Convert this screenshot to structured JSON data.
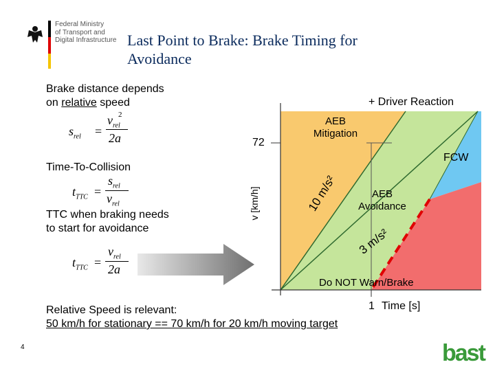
{
  "header": {
    "ministry_lines": [
      "Federal Ministry",
      "of Transport and",
      "Digital Infrastructure"
    ],
    "title_line1": "Last Point to Brake: Brake Timing for",
    "title_line2": "Avoidance"
  },
  "left": {
    "brake_distance_line1": "Brake distance depends",
    "brake_distance_line2_pre": "on ",
    "brake_distance_line2_underlined": "relative",
    "brake_distance_line2_post": " speed",
    "ttc_heading": "Time-To-Collision",
    "ttc_braking_line1": "TTC when braking needs",
    "ttc_braking_line2": "to start for avoidance"
  },
  "formulas": {
    "f1_lhs": "s",
    "f1_lhs_sub": "rel",
    "f1_num": "v",
    "f1_num_sub": "rel",
    "f1_num_sup": "2",
    "f1_den": "2a",
    "f2_lhs": "t",
    "f2_lhs_sub": "TTC",
    "f2_num": "s",
    "f2_num_sub": "rel",
    "f2_den": "v",
    "f2_den_sub": "rel",
    "f3_lhs": "t",
    "f3_lhs_sub": "TTC",
    "f3_num": "v",
    "f3_num_sub": "rel",
    "f3_den": "2a",
    "equals": "="
  },
  "diagram": {
    "y_axis_label": "v [km/h]",
    "x_axis_label": "Time [s]",
    "y_tick": "72",
    "x_tick": "1",
    "label_driver_reaction": "+ Driver Reaction",
    "label_aeb_mitigation_1": "AEB",
    "label_aeb_mitigation_2": "Mitigation",
    "label_fcw": "FCW",
    "label_10ms": "10 m/s²",
    "label_aeb_avoidance_1": "AEB",
    "label_aeb_avoidance_2": "Avoidance",
    "label_3ms": "3 m/s²",
    "label_do_not_warn": "Do NOT Warn/Brake",
    "colors": {
      "orange": "#f9c96e",
      "green": "#c5e59b",
      "blue": "#6fc8f2",
      "red": "#f26d6d",
      "dashed": "#e00000"
    }
  },
  "footer": {
    "line1": "Relative Speed is relevant:",
    "line2": "50 km/h for stationary == 70 km/h for 20 km/h moving target",
    "page_number": "4",
    "logo_text": "bast"
  }
}
